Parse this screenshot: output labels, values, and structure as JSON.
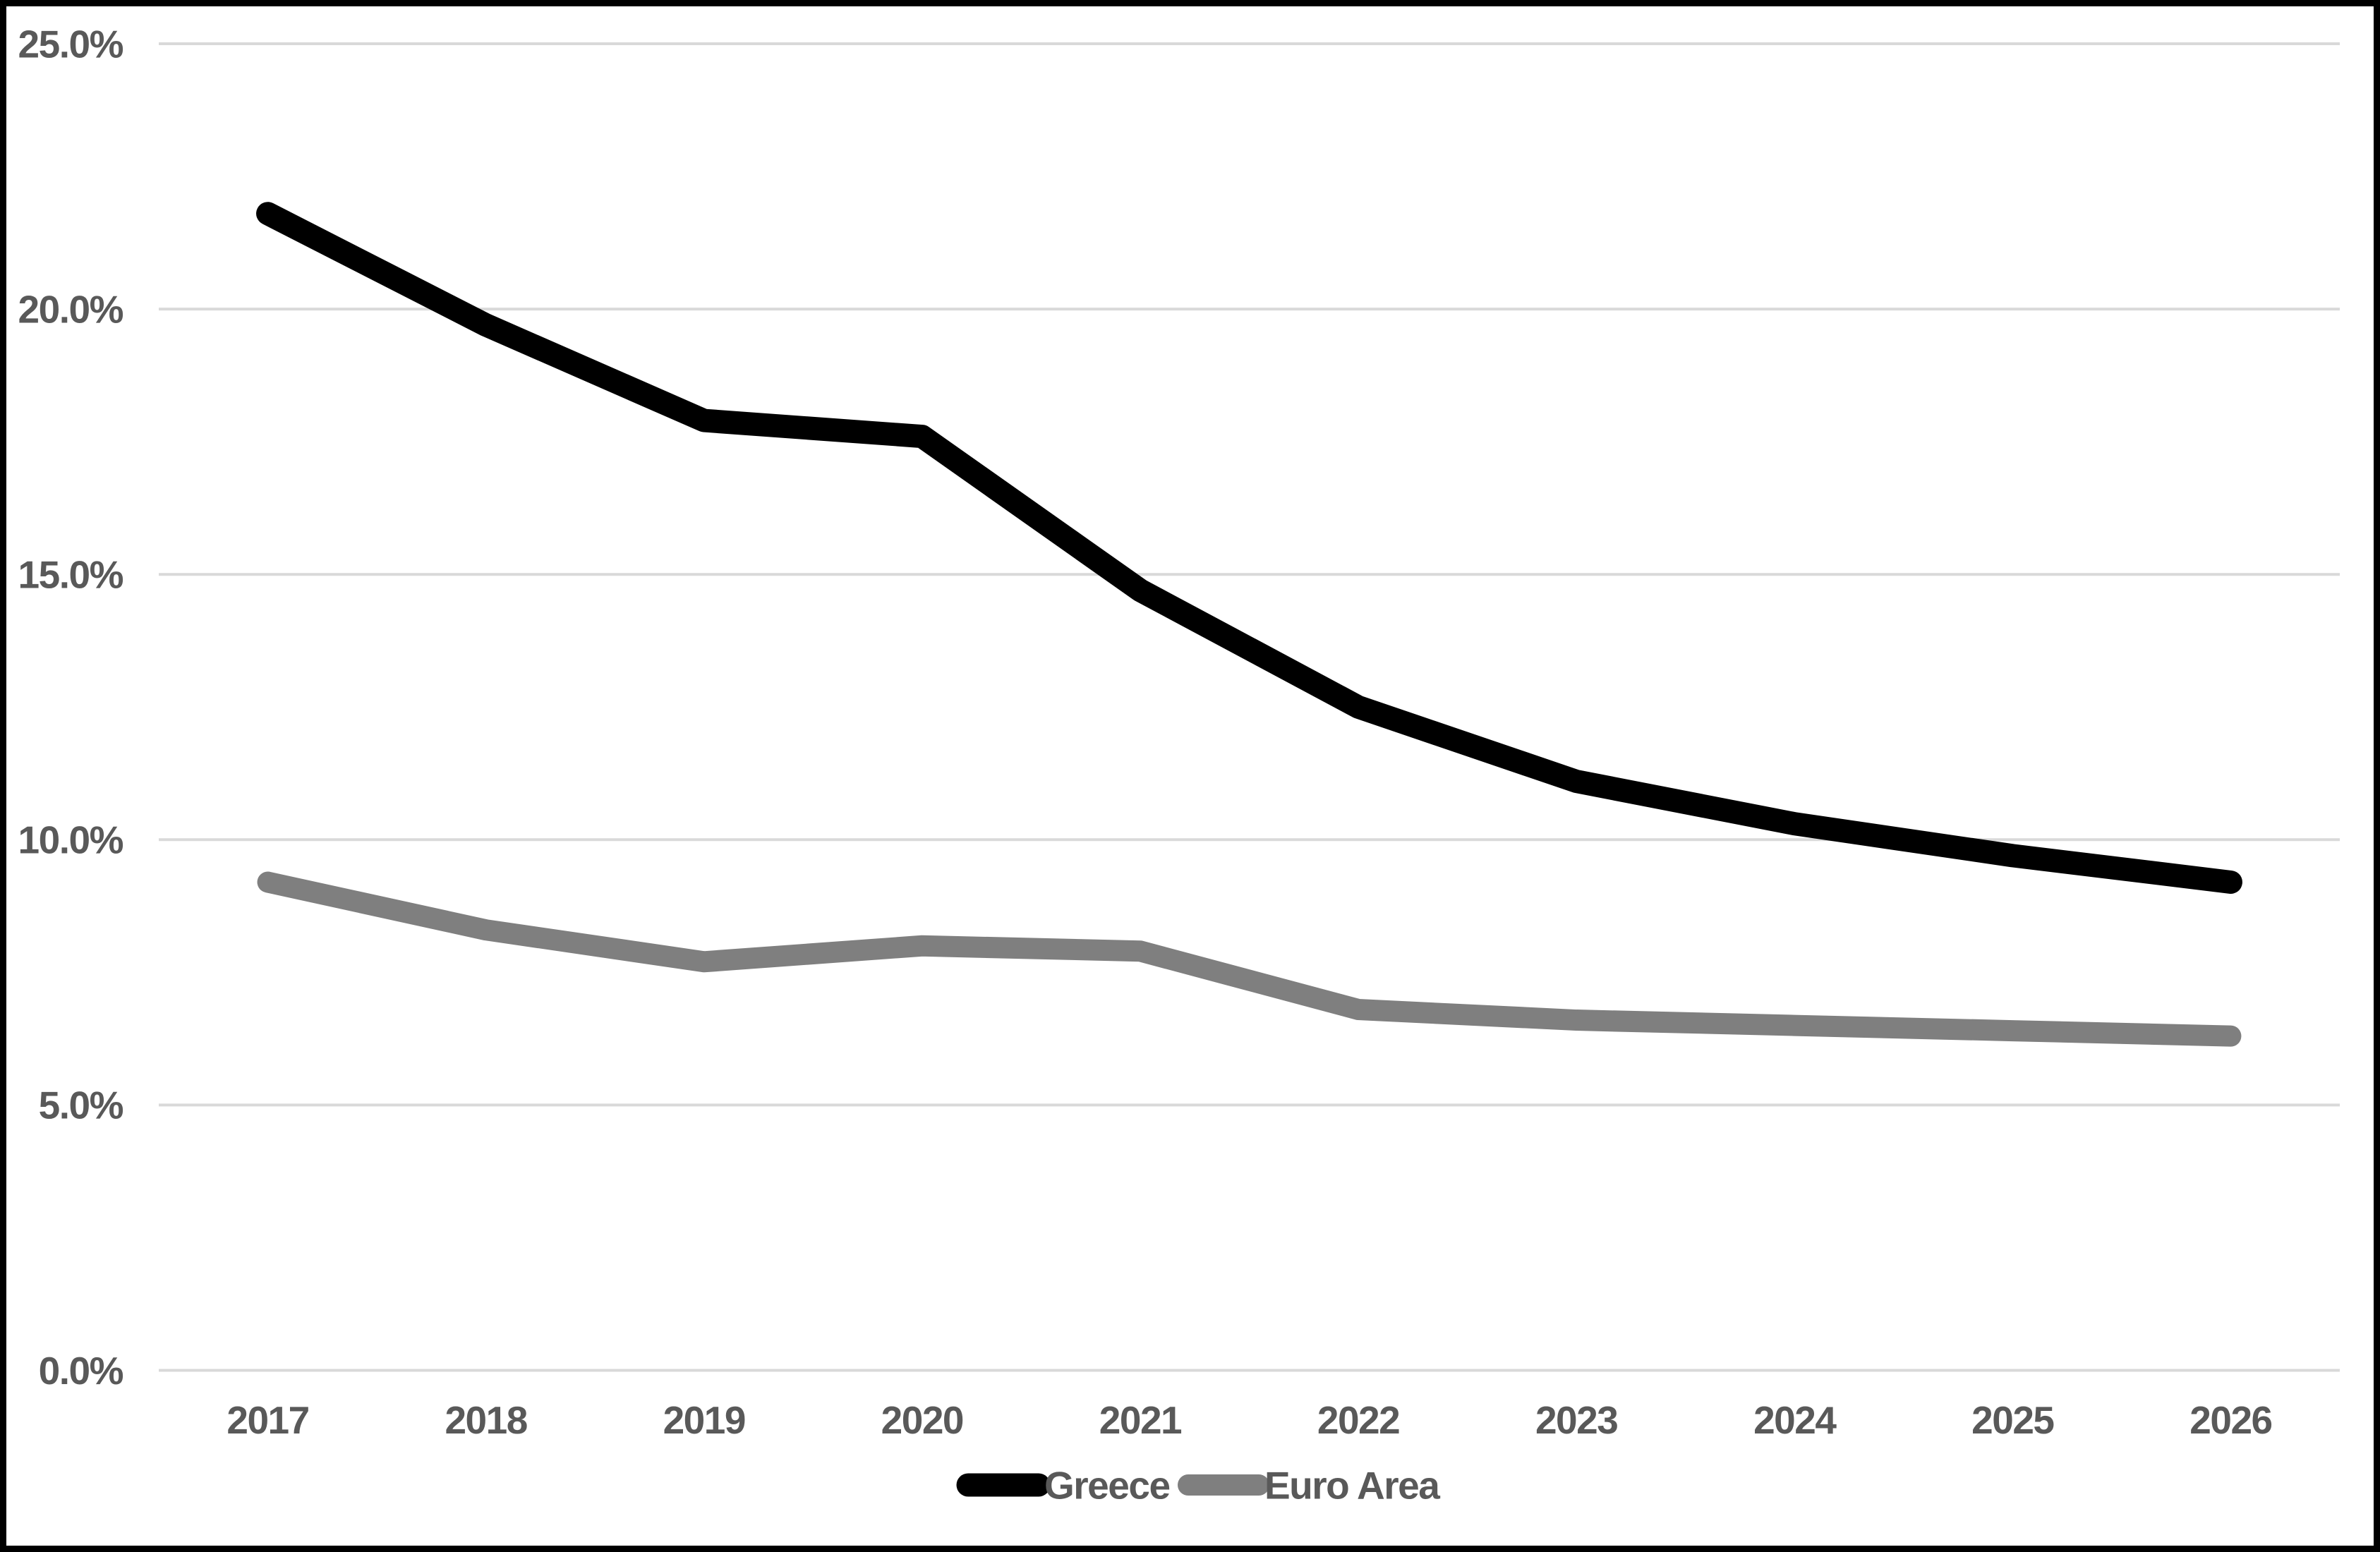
{
  "chart_data": {
    "type": "line",
    "title": "",
    "xlabel": "",
    "ylabel": "",
    "categories": [
      "2017",
      "2018",
      "2019",
      "2020",
      "2021",
      "2022",
      "2023",
      "2024",
      "2025",
      "2026"
    ],
    "series": [
      {
        "name": "Greece",
        "color": "#000000",
        "values": [
          21.8,
          19.7,
          17.9,
          17.6,
          14.7,
          12.5,
          11.1,
          10.3,
          9.7,
          9.2
        ]
      },
      {
        "name": "Euro Area",
        "color": "#7F7F7F",
        "values": [
          9.2,
          8.3,
          7.7,
          8.0,
          7.9,
          6.8,
          6.6,
          6.5,
          6.4,
          6.3
        ]
      }
    ],
    "ylim": [
      0,
      25
    ],
    "yticks": [
      {
        "value": 25,
        "label": "25.0%"
      },
      {
        "value": 20,
        "label": "20.0%"
      },
      {
        "value": 15,
        "label": "15.0%"
      },
      {
        "value": 10,
        "label": "10.0%"
      },
      {
        "value": 5,
        "label": "5.0%"
      },
      {
        "value": 0,
        "label": "0.0%"
      }
    ],
    "grid": "horizontal",
    "legend_position": "bottom",
    "colors": {
      "text": "#595959",
      "gridline": "#D9D9D9",
      "background": "#FFFFFF",
      "frame": "#000000"
    }
  },
  "legend": {
    "items": [
      {
        "label": "Greece",
        "color": "#000000"
      },
      {
        "label": "Euro Area",
        "color": "#7F7F7F"
      }
    ]
  }
}
